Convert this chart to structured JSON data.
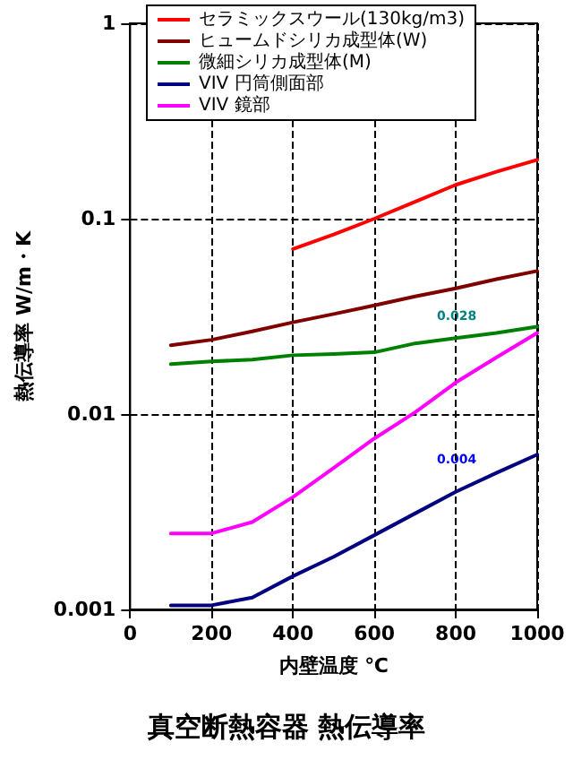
{
  "chart_data": {
    "type": "line",
    "title": "真空断熱容器 熱伝導率",
    "xlabel": "内壁温度 ℃",
    "ylabel": "熱伝導率 W/m・K",
    "x": [
      100,
      200,
      300,
      400,
      500,
      600,
      700,
      800,
      900,
      1000
    ],
    "series": [
      {
        "name": "セラミックスウール(130kg/m3)",
        "color": "#ff0000",
        "values": [
          null,
          null,
          null,
          0.07,
          0.083,
          0.1,
          0.122,
          0.149,
          0.174,
          0.2
        ]
      },
      {
        "name": "ヒュームドシリカ成型体(W)",
        "color": "#800000",
        "values": [
          0.0225,
          0.024,
          0.0265,
          0.0295,
          0.0325,
          0.036,
          0.04,
          0.044,
          0.049,
          0.054
        ]
      },
      {
        "name": "微細シリカ成型体(M)",
        "color": "#008000",
        "values": [
          0.018,
          0.0186,
          0.019,
          0.02,
          0.0203,
          0.0207,
          0.023,
          0.0245,
          0.026,
          0.028
        ]
      },
      {
        "name": "VIV 円筒側面部",
        "color": "#000080",
        "values": [
          0.00105,
          0.00105,
          0.00115,
          0.00148,
          0.00186,
          0.0024,
          0.0031,
          0.004,
          0.005,
          0.0062
        ]
      },
      {
        "name": "VIV 鏡部",
        "color": "#ff00ff",
        "values": [
          0.00245,
          0.00245,
          0.0028,
          0.00376,
          0.0053,
          0.0075,
          0.0102,
          0.0145,
          0.0195,
          0.026
        ]
      }
    ],
    "annotations": [
      "0.028",
      "0.004"
    ],
    "xlim": [
      0,
      1000
    ],
    "xticks": [
      0,
      200,
      400,
      600,
      800,
      1000
    ],
    "ylim": [
      0.001,
      1
    ],
    "yticks": [
      0.001,
      0.01,
      0.1,
      1
    ],
    "log": "y",
    "grid": true,
    "legend": "top",
    "marker": "none",
    "line_style": "solid"
  }
}
